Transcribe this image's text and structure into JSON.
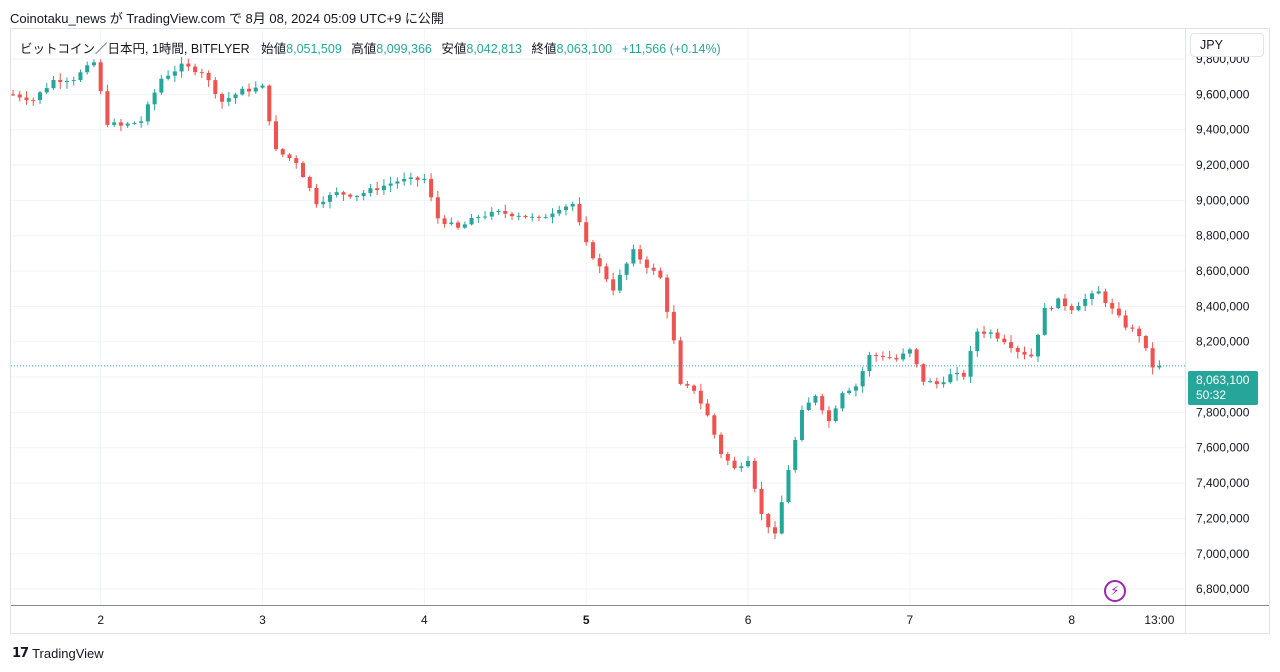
{
  "header": {
    "text": "Coinotaku_news が TradingView.com で 8月 08, 2024 05:09 UTC+9 に公開"
  },
  "legend": {
    "symbol": "ビットコイン／日本円, 1時間, BITFLYER",
    "open_label": "始値",
    "open_value": "8,051,509",
    "high_label": "高値",
    "high_value": "8,099,366",
    "low_label": "安値",
    "low_value": "8,042,813",
    "close_label": "終値",
    "close_value": "8,063,100",
    "change": "+11,566 (+0.14%)"
  },
  "currency": "JPY",
  "price_tag": {
    "price": "8,063,100",
    "countdown": "50:32"
  },
  "footer": {
    "logo_text": "TradingView"
  },
  "colors": {
    "up": "#26a69a",
    "down": "#ef5350",
    "grid": "#f0f3fa",
    "accent": "#9c27b0"
  },
  "icons": {
    "lightning": "lightning-icon",
    "logo": "tradingview-logo-icon"
  },
  "chart_data": {
    "type": "candlestick",
    "y_ticks": [
      6800000,
      7000000,
      7200000,
      7400000,
      7600000,
      7800000,
      8000000,
      8200000,
      8400000,
      8600000,
      8800000,
      9000000,
      9200000,
      9400000,
      9600000,
      9800000
    ],
    "y_tick_labels": [
      "6,800,000",
      "7,000,000",
      "7,200,000",
      "7,400,000",
      "7,600,000",
      "7,800,000",
      "8,000,000",
      "8,200,000",
      "8,400,000",
      "8,600,000",
      "8,800,000",
      "9,000,000",
      "9,200,000",
      "9,400,000",
      "9,600,000",
      "9,800,000"
    ],
    "ylim": [
      6710000,
      9970000
    ],
    "x_ticks": [
      {
        "label": "2",
        "t": 24,
        "bold": false
      },
      {
        "label": "3",
        "t": 48,
        "bold": false
      },
      {
        "label": "4",
        "t": 72,
        "bold": false
      },
      {
        "label": "5",
        "t": 96,
        "bold": true
      },
      {
        "label": "6",
        "t": 120,
        "bold": false
      },
      {
        "label": "7",
        "t": 144,
        "bold": false
      },
      {
        "label": "8",
        "t": 168,
        "bold": false
      },
      {
        "label": "13:00",
        "t": 181,
        "bold": false
      }
    ],
    "xlim": [
      10.7,
      184.8
    ],
    "current_price": 8063100,
    "anchors": [
      [
        11,
        9600000
      ],
      [
        14,
        9570000
      ],
      [
        17,
        9680000
      ],
      [
        20,
        9690000
      ],
      [
        23,
        9780000
      ],
      [
        25,
        9440000
      ],
      [
        27,
        9420000
      ],
      [
        30,
        9450000
      ],
      [
        33,
        9690000
      ],
      [
        36,
        9760000
      ],
      [
        39,
        9730000
      ],
      [
        42,
        9560000
      ],
      [
        45,
        9620000
      ],
      [
        48,
        9640000
      ],
      [
        50,
        9280000
      ],
      [
        53,
        9220000
      ],
      [
        56,
        8990000
      ],
      [
        59,
        9040000
      ],
      [
        62,
        9030000
      ],
      [
        65,
        9070000
      ],
      [
        68,
        9110000
      ],
      [
        72,
        9120000
      ],
      [
        74,
        8900000
      ],
      [
        77,
        8840000
      ],
      [
        80,
        8910000
      ],
      [
        83,
        8930000
      ],
      [
        86,
        8920000
      ],
      [
        89,
        8890000
      ],
      [
        92,
        8960000
      ],
      [
        94,
        8980000
      ],
      [
        96,
        8750000
      ],
      [
        98,
        8620000
      ],
      [
        100,
        8500000
      ],
      [
        103,
        8710000
      ],
      [
        105,
        8630000
      ],
      [
        107,
        8560000
      ],
      [
        109,
        8200000
      ],
      [
        110,
        7950000
      ],
      [
        112,
        7930000
      ],
      [
        114,
        7780000
      ],
      [
        116,
        7570000
      ],
      [
        118,
        7480000
      ],
      [
        120,
        7540000
      ],
      [
        122,
        7220000
      ],
      [
        124,
        7100000
      ],
      [
        126,
        7480000
      ],
      [
        128,
        7800000
      ],
      [
        130,
        7900000
      ],
      [
        132,
        7750000
      ],
      [
        134,
        7920000
      ],
      [
        136,
        7950000
      ],
      [
        138,
        8120000
      ],
      [
        140,
        8120000
      ],
      [
        142,
        8100000
      ],
      [
        144,
        8150000
      ],
      [
        146,
        7980000
      ],
      [
        148,
        7960000
      ],
      [
        150,
        8010000
      ],
      [
        152,
        8010000
      ],
      [
        154,
        8260000
      ],
      [
        156,
        8250000
      ],
      [
        158,
        8210000
      ],
      [
        160,
        8150000
      ],
      [
        162,
        8120000
      ],
      [
        164,
        8380000
      ],
      [
        166,
        8430000
      ],
      [
        168,
        8390000
      ],
      [
        170,
        8440000
      ],
      [
        172,
        8480000
      ],
      [
        174,
        8380000
      ],
      [
        176,
        8290000
      ],
      [
        178,
        8240000
      ],
      [
        180,
        8060000
      ],
      [
        181,
        8063100
      ]
    ]
  }
}
